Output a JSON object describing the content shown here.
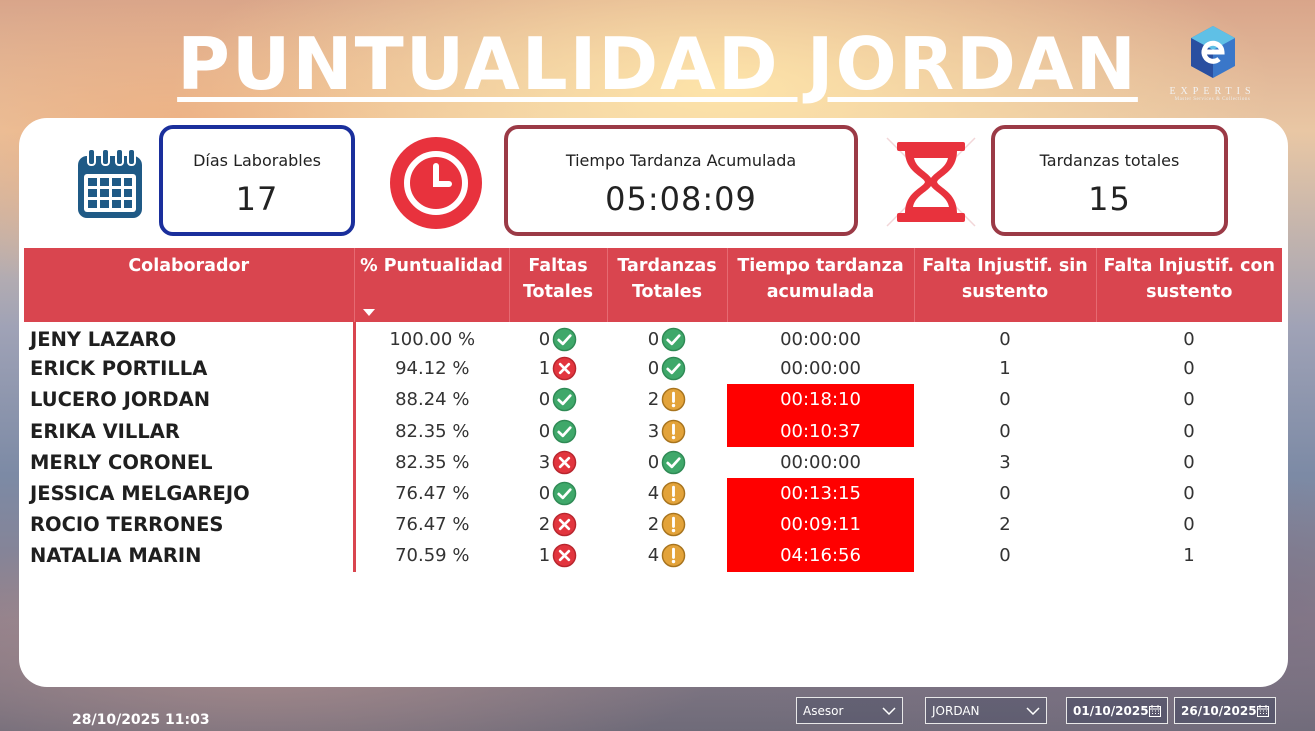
{
  "title": "PUNTUALIDAD JORDAN",
  "logo": {
    "name": "EXPERTIS",
    "tagline": "Master Services & Collections"
  },
  "kpis": {
    "dias_label": "Días Laborables",
    "dias_value": "17",
    "tiempo_label": "Tiempo Tardanza Acumulada",
    "tiempo_value": "05:08:09",
    "tardanzas_label": "Tardanzas totales",
    "tardanzas_value": "15"
  },
  "table": {
    "headers": [
      "Colaborador",
      "% Puntualidad",
      "Faltas Totales",
      "Tardanzas Totales",
      "Tiempo tardanza acumulada",
      "Falta Injustif. sin sustento",
      "Falta Injustif. con sustento"
    ],
    "rows": [
      {
        "name": "JENY LAZARO",
        "pct": "100.00 %",
        "faltas": "0",
        "faltas_icon": "check-icon",
        "tard": "0",
        "tard_icon": "check-icon",
        "tiempo": "00:00:00",
        "late": false,
        "sin": "0",
        "con": "0"
      },
      {
        "name": "ERICK PORTILLA",
        "pct": "94.12 %",
        "faltas": "1",
        "faltas_icon": "cross-icon",
        "tard": "0",
        "tard_icon": "check-icon",
        "tiempo": "00:00:00",
        "late": false,
        "sin": "1",
        "con": "0"
      },
      {
        "name": "LUCERO JORDAN",
        "pct": "88.24 %",
        "faltas": "0",
        "faltas_icon": "check-icon",
        "tard": "2",
        "tard_icon": "warning-icon",
        "tiempo": "00:18:10",
        "late": true,
        "sin": "0",
        "con": "0"
      },
      {
        "name": "ERIKA VILLAR",
        "pct": "82.35 %",
        "faltas": "0",
        "faltas_icon": "check-icon",
        "tard": "3",
        "tard_icon": "warning-icon",
        "tiempo": "00:10:37",
        "late": true,
        "sin": "0",
        "con": "0"
      },
      {
        "name": "MERLY CORONEL",
        "pct": "82.35 %",
        "faltas": "3",
        "faltas_icon": "cross-icon",
        "tard": "0",
        "tard_icon": "check-icon",
        "tiempo": "00:00:00",
        "late": false,
        "sin": "3",
        "con": "0"
      },
      {
        "name": "JESSICA MELGAREJO",
        "pct": "76.47 %",
        "faltas": "0",
        "faltas_icon": "check-icon",
        "tard": "4",
        "tard_icon": "warning-icon",
        "tiempo": "00:13:15",
        "late": true,
        "sin": "0",
        "con": "0"
      },
      {
        "name": "ROCIO TERRONES",
        "pct": "76.47 %",
        "faltas": "2",
        "faltas_icon": "cross-icon",
        "tard": "2",
        "tard_icon": "warning-icon",
        "tiempo": "00:09:11",
        "late": true,
        "sin": "2",
        "con": "0"
      },
      {
        "name": "NATALIA MARIN",
        "pct": "70.59 %",
        "faltas": "1",
        "faltas_icon": "cross-icon",
        "tard": "4",
        "tard_icon": "warning-icon",
        "tiempo": "04:16:56",
        "late": true,
        "sin": "0",
        "con": "1"
      }
    ]
  },
  "footer": {
    "timestamp": "28/10/2025 11:03",
    "asesor_label": "Asesor",
    "jordan_value": "JORDAN",
    "date_from": "01/10/2025",
    "date_to": "26/10/2025"
  },
  "colors": {
    "header_red": "#d9454f",
    "late_red": "#ff0000",
    "kpi_blue": "#1a2f9c",
    "kpi_maroon": "#9b3a46",
    "check_green": "#3fa86a",
    "cross_red": "#e2353e",
    "warning_gold": "#e3a33a"
  }
}
